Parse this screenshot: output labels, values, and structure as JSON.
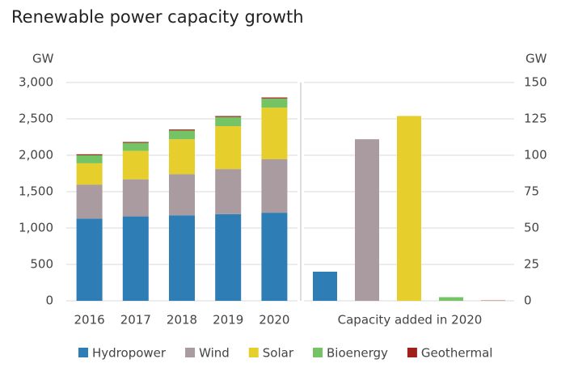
{
  "chart_data": [
    {
      "type": "stacked_bar",
      "title": "Renewable power capacity growth",
      "y_label": "GW",
      "categories": [
        "2016",
        "2017",
        "2018",
        "2019",
        "2020"
      ],
      "series": [
        {
          "name": "Hydropower",
          "color": "#2e7db5",
          "values": [
            1130,
            1160,
            1175,
            1190,
            1210
          ]
        },
        {
          "name": "Wind",
          "color": "#a99ba0",
          "values": [
            465,
            510,
            565,
            620,
            735
          ]
        },
        {
          "name": "Solar",
          "color": "#e6cf2d",
          "values": [
            295,
            390,
            480,
            590,
            710
          ]
        },
        {
          "name": "Bioenergy",
          "color": "#74c465",
          "values": [
            110,
            110,
            120,
            125,
            125
          ]
        },
        {
          "name": "Geothermal",
          "color": "#a0201c",
          "values": [
            13,
            13,
            14,
            14,
            14
          ]
        }
      ],
      "ylim": [
        0,
        3000
      ],
      "yticks": [
        0,
        500,
        {
          "value": 1000,
          "label": "1,000"
        },
        {
          "value": 1500,
          "label": "1,500"
        },
        {
          "value": 2000,
          "label": "2,000"
        },
        {
          "value": 2500,
          "label": "2,500"
        },
        {
          "value": 3000,
          "label": "3,000"
        }
      ],
      "grid": true,
      "legend": "bottom"
    },
    {
      "type": "bar",
      "x_label": "Capacity added in 2020",
      "y2_label": "GW",
      "categories": [
        null
      ],
      "series": [
        {
          "color": "#2e7db5",
          "values": [
            20
          ],
          "axis": "y2"
        },
        {
          "color": "#a99ba0",
          "values": [
            111
          ],
          "axis": "y2"
        },
        {
          "color": "#e6cf2d",
          "values": [
            127
          ],
          "axis": "y2"
        },
        {
          "color": "#74c465",
          "values": [
            2.5
          ],
          "axis": "y2"
        },
        {
          "color": "#a0201c",
          "values": [
            0.2
          ],
          "axis": "y2"
        }
      ],
      "y2lim": [
        0,
        150
      ],
      "y2ticks": [
        0,
        25,
        50,
        75,
        100,
        125,
        150
      ],
      "grid": true
    }
  ]
}
